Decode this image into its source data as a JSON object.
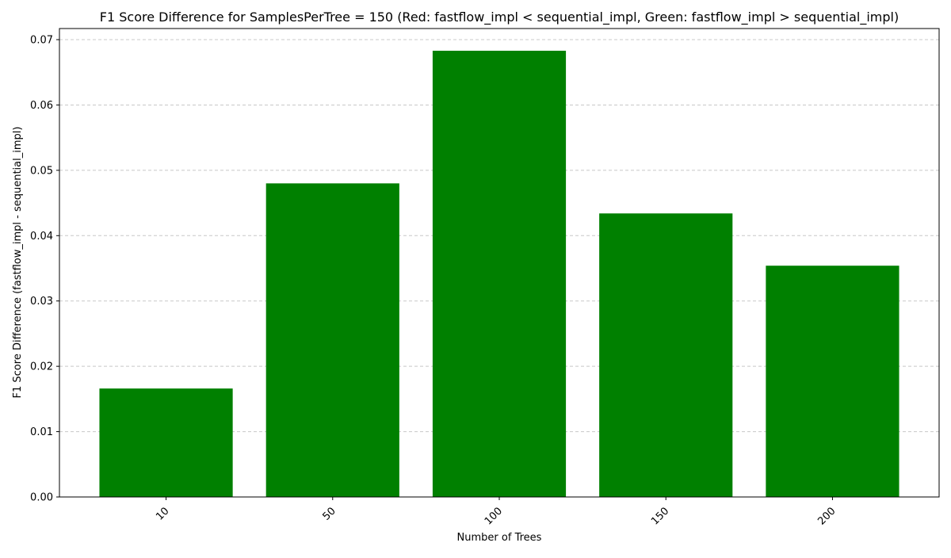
{
  "chart_data": {
    "type": "bar",
    "title": "F1 Score Difference for SamplesPerTree = 150 (Red: fastflow_impl < sequential_impl, Green: fastflow_impl > sequential_impl)",
    "xlabel": "Number of Trees",
    "ylabel": "F1 Score Difference (fastflow_impl - sequential_impl)",
    "categories": [
      "10",
      "50",
      "100",
      "150",
      "200"
    ],
    "values": [
      0.0166,
      0.048,
      0.0683,
      0.0434,
      0.0354
    ],
    "ylim": [
      0,
      0.0717
    ],
    "yticks": [
      "0.00",
      "0.01",
      "0.02",
      "0.03",
      "0.04",
      "0.05",
      "0.06",
      "0.07"
    ],
    "grid": "y-dashed",
    "colors": {
      "positive": "#008000",
      "negative": "#ff0000",
      "grid": "#c8c8c8"
    }
  }
}
